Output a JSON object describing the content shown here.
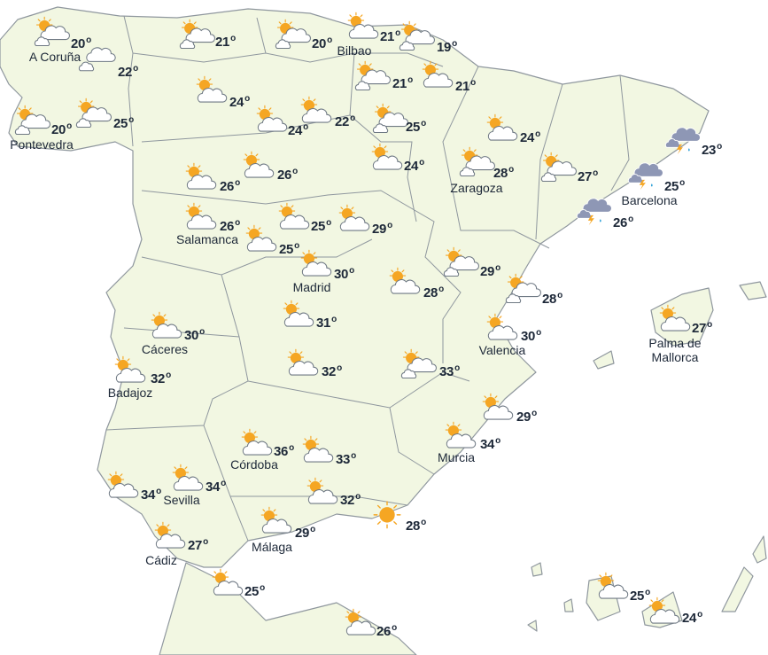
{
  "map": {
    "region": "Spain",
    "unit": "o",
    "colors": {
      "land": "#f2f7e2",
      "border": "#8f979e",
      "sun": "#f5a623",
      "storm_cloud": "#8e97b5",
      "rain": "#2a9fd6",
      "text": "#1d2838"
    },
    "forecasts": [
      {
        "temp": "20",
        "icon": "sun-clouds",
        "city": "A Coruña"
      },
      {
        "temp": "22",
        "icon": "clouds",
        "city": ""
      },
      {
        "temp": "20",
        "icon": "sun-clouds",
        "city": "Pontevedra"
      },
      {
        "temp": "25",
        "icon": "sun-clouds",
        "city": ""
      },
      {
        "temp": "21",
        "icon": "sun-clouds",
        "city": ""
      },
      {
        "temp": "24",
        "icon": "sun-cloud",
        "city": ""
      },
      {
        "temp": "20",
        "icon": "sun-clouds",
        "city": ""
      },
      {
        "temp": "21",
        "icon": "sun-cloud",
        "city": "Bilbao"
      },
      {
        "temp": "19",
        "icon": "sun-clouds",
        "city": ""
      },
      {
        "temp": "21",
        "icon": "sun-clouds",
        "city": ""
      },
      {
        "temp": "21",
        "icon": "sun-cloud",
        "city": ""
      },
      {
        "temp": "24",
        "icon": "sun-cloud",
        "city": ""
      },
      {
        "temp": "22",
        "icon": "sun-cloud",
        "city": ""
      },
      {
        "temp": "25",
        "icon": "sun-clouds",
        "city": ""
      },
      {
        "temp": "24",
        "icon": "sun-cloud",
        "city": ""
      },
      {
        "temp": "24",
        "icon": "sun-cloud",
        "city": ""
      },
      {
        "temp": "28",
        "icon": "sun-clouds",
        "city": "Zaragoza"
      },
      {
        "temp": "27",
        "icon": "sun-clouds",
        "city": ""
      },
      {
        "temp": "26",
        "icon": "sun-cloud",
        "city": ""
      },
      {
        "temp": "26",
        "icon": "sun-cloud",
        "city": ""
      },
      {
        "temp": "26",
        "icon": "sun-cloud",
        "city": "Salamanca"
      },
      {
        "temp": "25",
        "icon": "sun-cloud",
        "city": ""
      },
      {
        "temp": "25",
        "icon": "sun-cloud",
        "city": ""
      },
      {
        "temp": "29",
        "icon": "sun-cloud",
        "city": ""
      },
      {
        "temp": "30",
        "icon": "sun-cloud",
        "city": "Madrid"
      },
      {
        "temp": "28",
        "icon": "sun-cloud",
        "city": ""
      },
      {
        "temp": "29",
        "icon": "sun-clouds",
        "city": ""
      },
      {
        "temp": "28",
        "icon": "sun-clouds",
        "city": ""
      },
      {
        "temp": "30",
        "icon": "sun-cloud",
        "city": "Cáceres"
      },
      {
        "temp": "31",
        "icon": "sun-cloud",
        "city": ""
      },
      {
        "temp": "30",
        "icon": "sun-cloud",
        "city": "Valencia"
      },
      {
        "temp": "32",
        "icon": "sun-cloud",
        "city": "Badajoz"
      },
      {
        "temp": "32",
        "icon": "sun-cloud",
        "city": ""
      },
      {
        "temp": "33",
        "icon": "sun-clouds",
        "city": ""
      },
      {
        "temp": "29",
        "icon": "sun-cloud",
        "city": ""
      },
      {
        "temp": "34",
        "icon": "sun-cloud",
        "city": "Murcia"
      },
      {
        "temp": "36",
        "icon": "sun-cloud",
        "city": "Córdoba"
      },
      {
        "temp": "33",
        "icon": "sun-cloud",
        "city": ""
      },
      {
        "temp": "34",
        "icon": "sun-cloud",
        "city": ""
      },
      {
        "temp": "34",
        "icon": "sun-cloud",
        "city": "Sevilla"
      },
      {
        "temp": "32",
        "icon": "sun-cloud",
        "city": ""
      },
      {
        "temp": "28",
        "icon": "sun",
        "city": ""
      },
      {
        "temp": "29",
        "icon": "sun-cloud",
        "city": "Málaga"
      },
      {
        "temp": "27",
        "icon": "sun-cloud",
        "city": "Cádiz"
      },
      {
        "temp": "25",
        "icon": "sun-cloud",
        "city": ""
      },
      {
        "temp": "26",
        "icon": "sun-cloud",
        "city": ""
      },
      {
        "temp": "23",
        "icon": "storm",
        "city": ""
      },
      {
        "temp": "25",
        "icon": "storm",
        "city": "Barcelona"
      },
      {
        "temp": "26",
        "icon": "storm",
        "city": ""
      },
      {
        "temp": "27",
        "icon": "sun-cloud",
        "city": "Palma de Mallorca"
      },
      {
        "temp": "25",
        "icon": "sun-cloud",
        "city": ""
      },
      {
        "temp": "24",
        "icon": "sun-cloud",
        "city": ""
      }
    ]
  }
}
